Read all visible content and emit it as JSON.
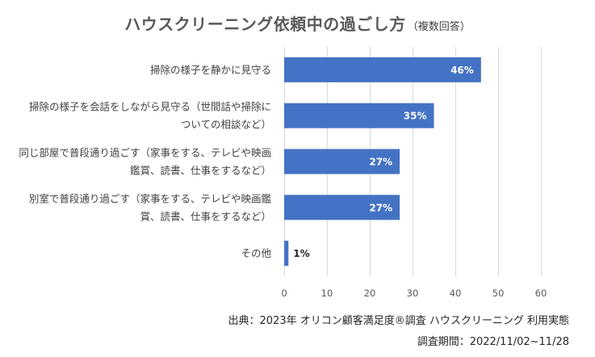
{
  "title": {
    "main": "ハウスクリーニング依頼中の過ごし方",
    "sub": "（複数回答）"
  },
  "chart_data": {
    "type": "bar",
    "orientation": "horizontal",
    "categories": [
      [
        "掃除の様子を静かに見守る"
      ],
      [
        "掃除の様子を会話をしながら見守る（世間話や掃除に",
        "ついての相談など）"
      ],
      [
        "同じ部屋で普段通り過ごす（家事をする、テレビや映画",
        "鑑賞、読書、仕事をするなど）"
      ],
      [
        "別室で普段通り過ごす（家事をする、テレビや映画鑑",
        "賞、読書、仕事をするなど）"
      ],
      [
        "その他"
      ]
    ],
    "values": [
      46,
      35,
      27,
      27,
      1
    ],
    "value_labels": [
      "46%",
      "35%",
      "27%",
      "27%",
      "1%"
    ],
    "xlim": [
      0,
      60
    ],
    "xticks": [
      0,
      10,
      20,
      30,
      40,
      50,
      60
    ],
    "grid": true,
    "bar_color": "#4472C4",
    "label_color_inside": "#FFFFFF",
    "label_color_outside": "#262626"
  },
  "source": {
    "line1": "出典：2023年 オリコン顧客満足度®調査 ハウスクリーニング 利用実態",
    "line2": "調査期間：2022/11/02~11/28"
  }
}
